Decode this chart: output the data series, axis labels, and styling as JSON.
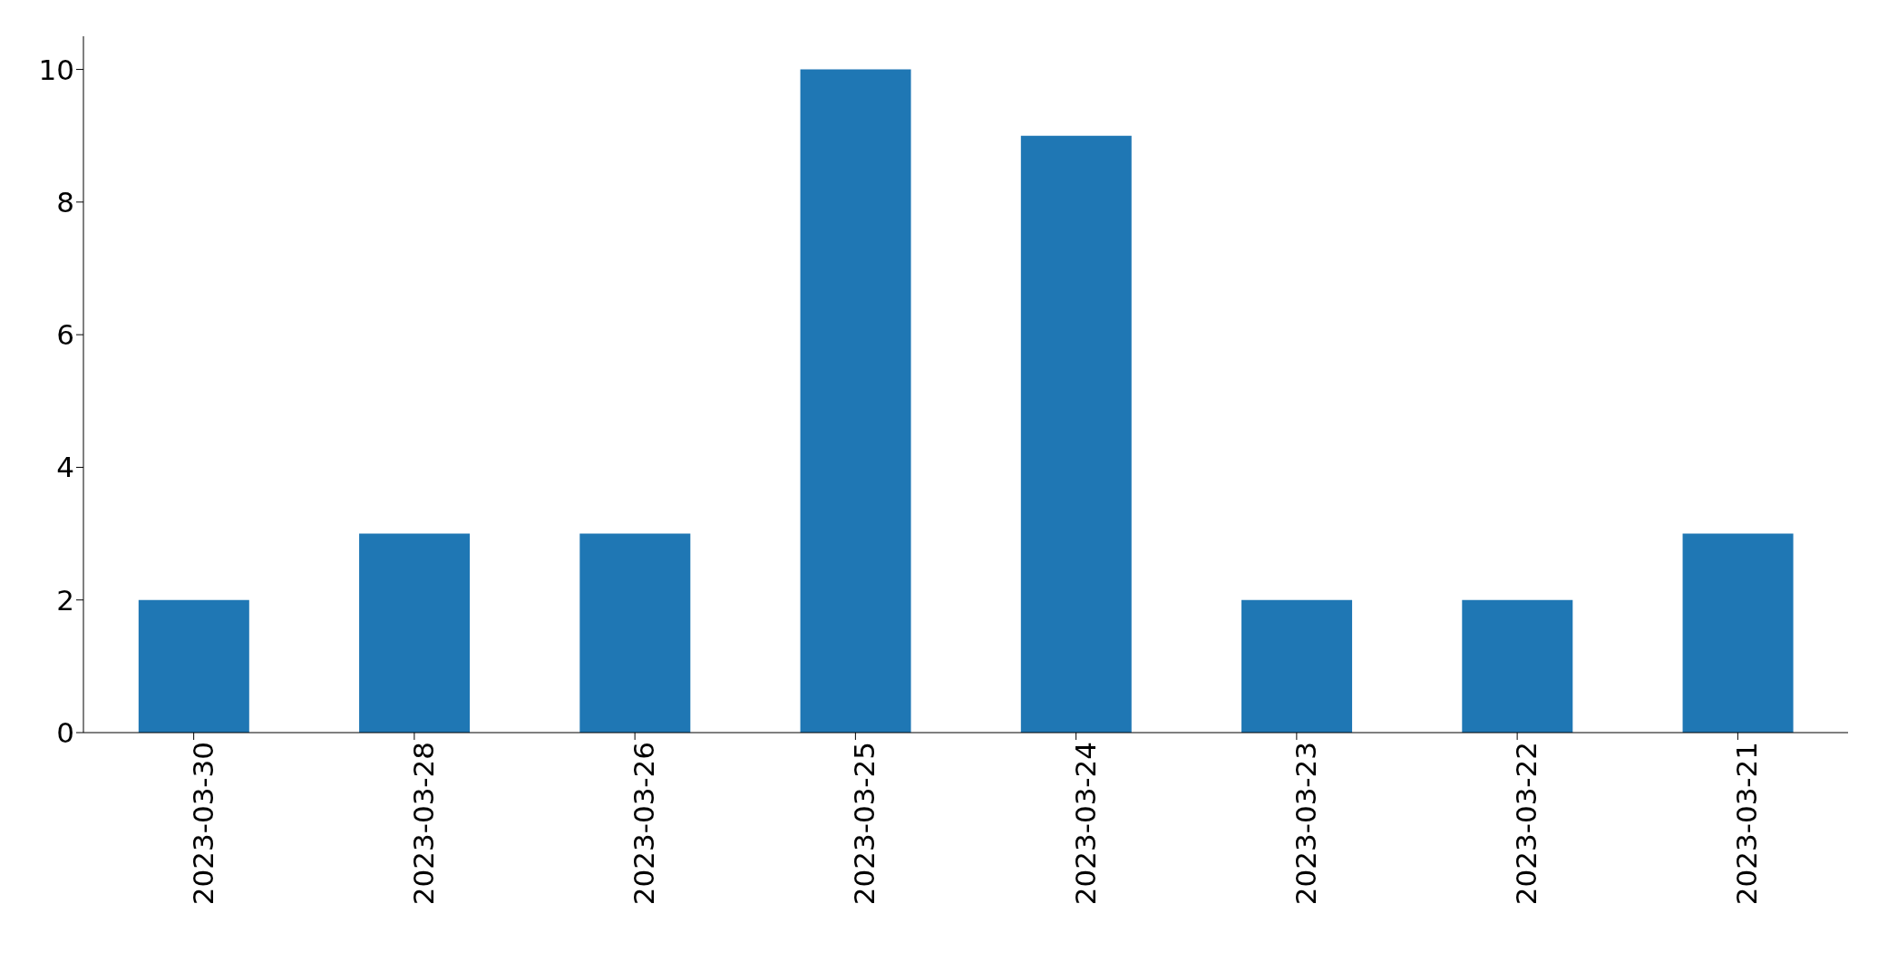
{
  "chart_data": {
    "type": "bar",
    "categories": [
      "2023-03-30",
      "2023-03-28",
      "2023-03-26",
      "2023-03-25",
      "2023-03-24",
      "2023-03-23",
      "2023-03-22",
      "2023-03-21"
    ],
    "values": [
      2,
      3,
      3,
      10,
      9,
      2,
      2,
      3
    ],
    "color": "#1f77b4",
    "ylim": [
      0,
      10.5
    ],
    "yticks": [
      0,
      2,
      4,
      6,
      8,
      10
    ],
    "grid": false,
    "legend": false
  }
}
